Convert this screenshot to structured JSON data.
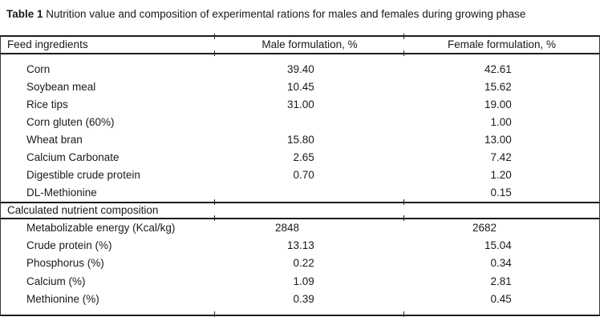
{
  "title": {
    "label": "Table 1",
    "text": " Nutrition value and composition of experimental rations for males and females during growing phase"
  },
  "table": {
    "columns": [
      {
        "label": "Feed ingredients"
      },
      {
        "label": "Male formulation, %"
      },
      {
        "label": "Female formulation, %"
      }
    ],
    "section1_rows": [
      {
        "label": "Corn",
        "male": "39.40",
        "female": "42.61"
      },
      {
        "label": "Soybean meal",
        "male": "10.45",
        "female": "15.62"
      },
      {
        "label": "Rice tips",
        "male": "31.00",
        "female": "19.00"
      },
      {
        "label": "Corn gluten (60%)",
        "male": "",
        "female": "1.00"
      },
      {
        "label": "Wheat bran",
        "male": "15.80",
        "female": "13.00"
      },
      {
        "label": "Calcium Carbonate",
        "male": "2.65",
        "female": "7.42"
      },
      {
        "label": "Digestible crude protein",
        "male": "0.70",
        "female": "1.20"
      },
      {
        "label": "DL-Methionine",
        "male": "",
        "female": "0.15"
      }
    ],
    "section2_header": "Calculated nutrient composition",
    "section2_rows": [
      {
        "label": "Metabolizable energy (Kcal/kg)",
        "male": "2848",
        "female": "2682"
      },
      {
        "label": "Crude protein (%)",
        "male": "13.13",
        "female": "15.04"
      },
      {
        "label": "Phosphorus (%)",
        "male": "0.22",
        "female": "0.34"
      },
      {
        "label": "Calcium (%)",
        "male": "1.09",
        "female": "2.81"
      },
      {
        "label": "Methionine (%)",
        "male": "0.39",
        "female": "0.45"
      }
    ]
  }
}
